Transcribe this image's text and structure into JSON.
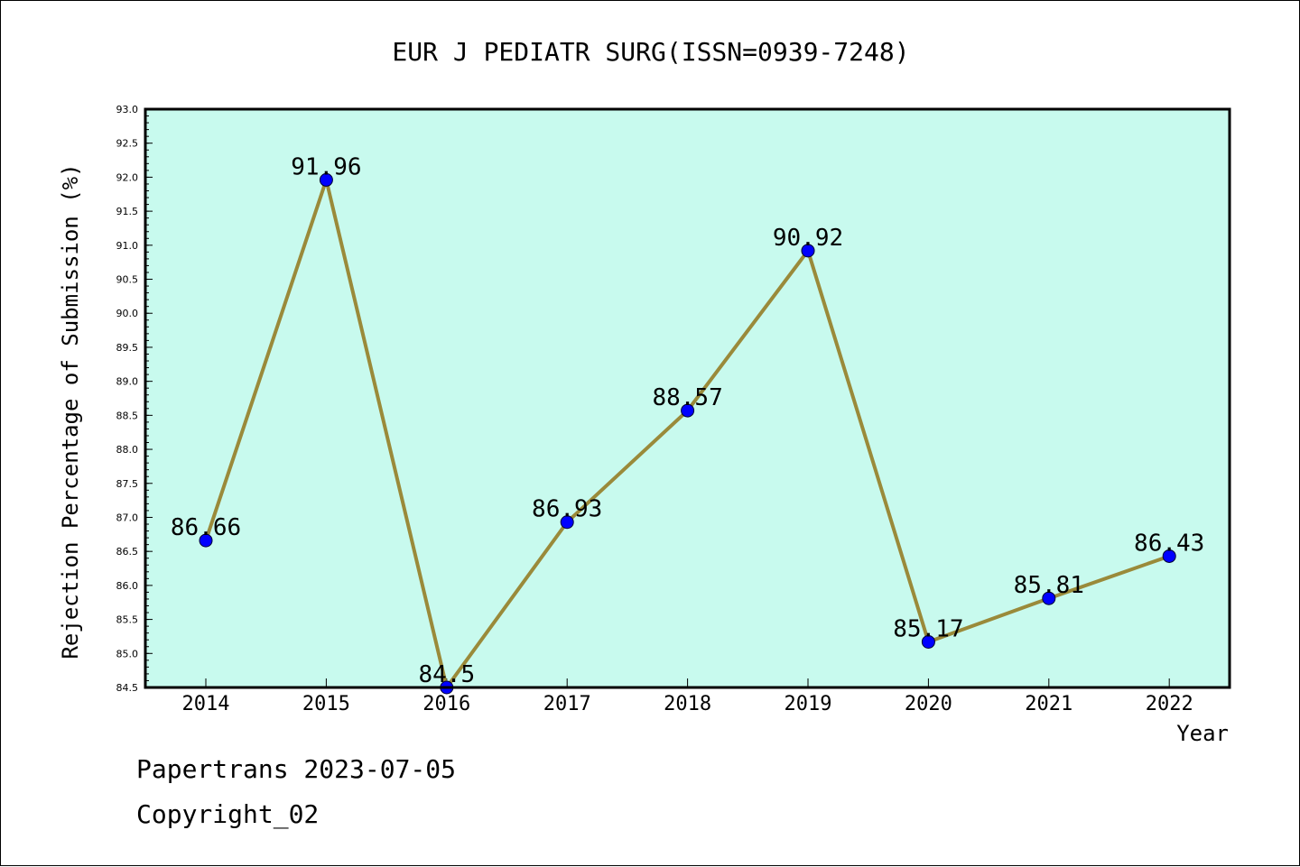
{
  "chart_data": {
    "type": "line",
    "title": "EUR J PEDIATR SURG(ISSN=0939-7248)",
    "xlabel": "Year",
    "ylabel": "Rejection Percentage of Submission (%)",
    "categories": [
      "2014",
      "2015",
      "2016",
      "2017",
      "2018",
      "2019",
      "2020",
      "2021",
      "2022"
    ],
    "series": [
      {
        "values": [
          86.66,
          91.96,
          84.5,
          86.93,
          88.57,
          90.92,
          85.17,
          85.81,
          86.43
        ],
        "labels": [
          "86.66",
          "91.96",
          "84.5",
          "86.93",
          "88.57",
          "90.92",
          "85.17",
          "85.81",
          "86.43"
        ]
      }
    ],
    "ylim": [
      84.5,
      93.0
    ],
    "yticks": [
      "84.5",
      "85.0",
      "85.5",
      "86.0",
      "86.5",
      "87.0",
      "87.5",
      "88.0",
      "88.5",
      "89.0",
      "89.5",
      "90.0",
      "90.5",
      "91.0",
      "91.5",
      "92.0",
      "92.5",
      "93.0"
    ],
    "grid": false,
    "colors": {
      "plot_background": "#c8faee",
      "line": "#9a8a3a",
      "marker": "#0000ff"
    }
  },
  "footer": {
    "line1": "Papertrans 2023-07-05",
    "line2": "Copyright_02"
  }
}
